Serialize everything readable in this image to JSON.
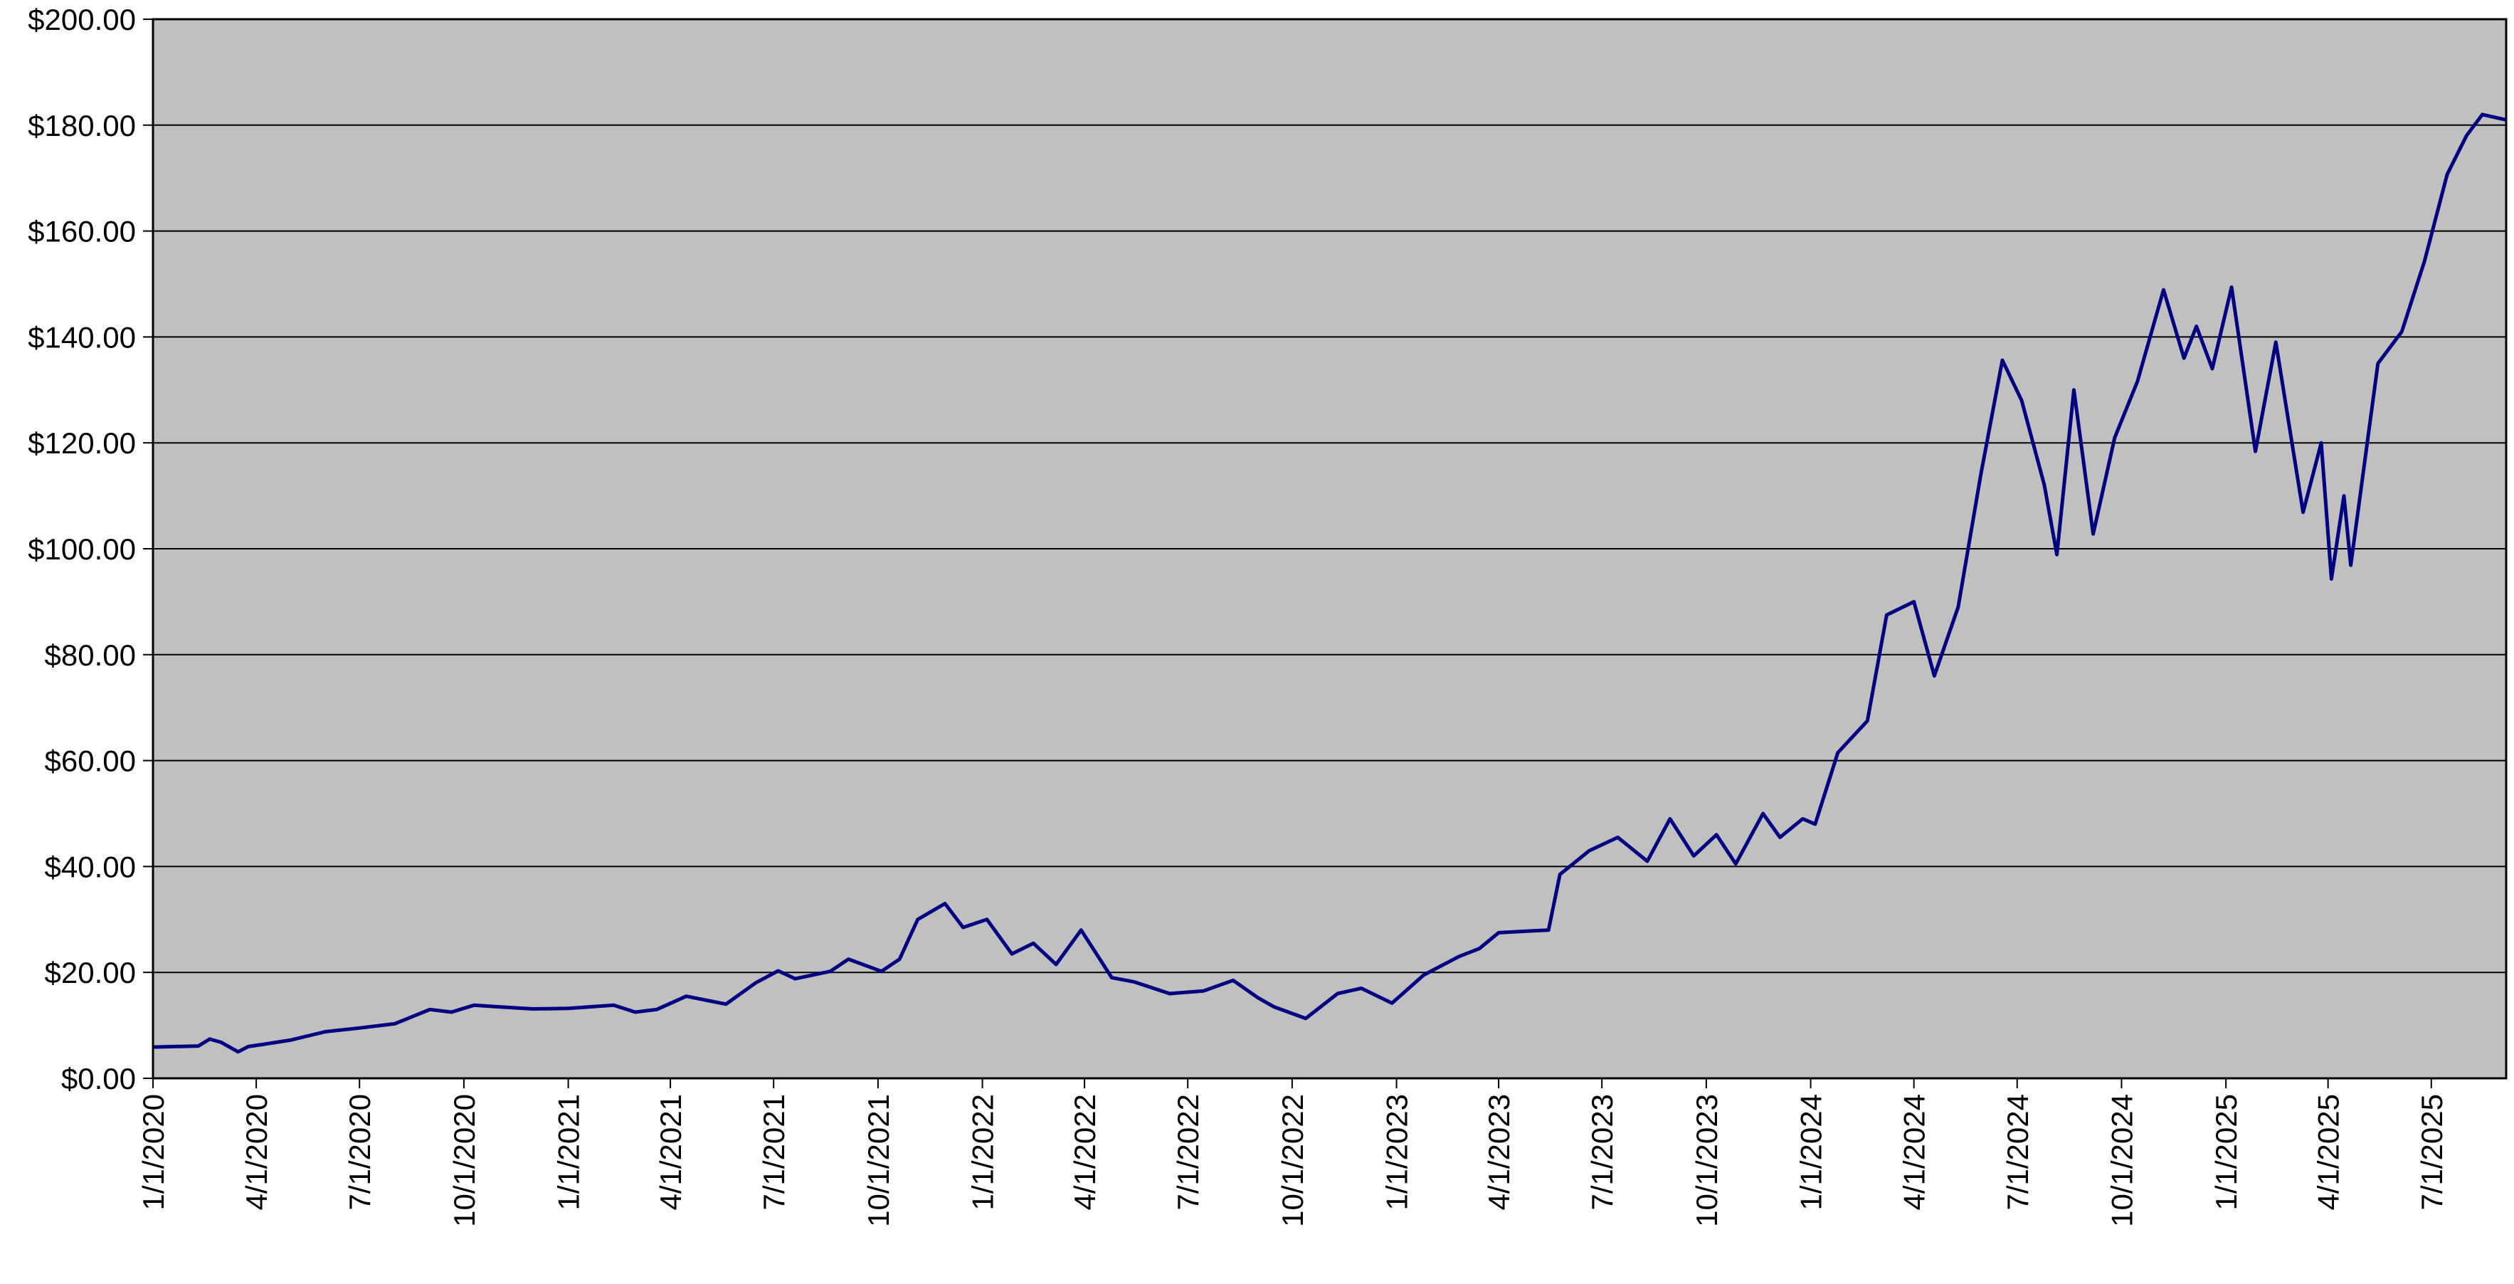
{
  "chart_data": {
    "type": "line",
    "title": "",
    "xlabel": "",
    "ylabel": "",
    "x_range": [
      "2020-01-01",
      "2025-09-05"
    ],
    "ylim": [
      0,
      200
    ],
    "y_ticks": [
      0,
      20,
      40,
      60,
      80,
      100,
      120,
      140,
      160,
      180,
      200
    ],
    "y_tick_labels": [
      "$0.00",
      "$20.00",
      "$40.00",
      "$60.00",
      "$80.00",
      "$100.00",
      "$120.00",
      "$140.00",
      "$160.00",
      "$180.00",
      "$200.00"
    ],
    "x_tick_dates": [
      "2020-01-01",
      "2020-04-01",
      "2020-07-01",
      "2020-10-01",
      "2021-01-01",
      "2021-04-01",
      "2021-07-01",
      "2021-10-01",
      "2022-01-01",
      "2022-04-01",
      "2022-07-01",
      "2022-10-01",
      "2023-01-01",
      "2023-04-01",
      "2023-07-01",
      "2023-10-01",
      "2024-01-01",
      "2024-04-01",
      "2024-07-01",
      "2024-10-01",
      "2025-01-01",
      "2025-04-01",
      "2025-07-01"
    ],
    "x_tick_labels": [
      "1/1/2020",
      "4/1/2020",
      "7/1/2020",
      "10/1/2020",
      "1/1/2021",
      "4/1/2021",
      "7/1/2021",
      "10/1/2021",
      "1/1/2022",
      "4/1/2022",
      "7/1/2022",
      "10/1/2022",
      "1/1/2023",
      "4/1/2023",
      "7/1/2023",
      "10/1/2023",
      "1/1/2024",
      "4/1/2024",
      "7/1/2024",
      "10/1/2024",
      "1/1/2025",
      "4/1/2025",
      "7/1/2025"
    ],
    "grid": "horizontal",
    "legend": "none",
    "colors": {
      "line": "#000080",
      "plot_background": "#c0c0c0",
      "gridline": "#000000"
    },
    "series": [
      {
        "points": [
          [
            "2020-01-01",
            5.9
          ],
          [
            "2020-01-20",
            6.0
          ],
          [
            "2020-02-10",
            6.1
          ],
          [
            "2020-02-20",
            7.4
          ],
          [
            "2020-03-01",
            6.8
          ],
          [
            "2020-03-16",
            5.0
          ],
          [
            "2020-03-25",
            6.0
          ],
          [
            "2020-04-10",
            6.5
          ],
          [
            "2020-05-01",
            7.2
          ],
          [
            "2020-06-01",
            8.8
          ],
          [
            "2020-07-01",
            9.5
          ],
          [
            "2020-08-01",
            10.3
          ],
          [
            "2020-09-01",
            13.0
          ],
          [
            "2020-09-20",
            12.5
          ],
          [
            "2020-10-10",
            13.8
          ],
          [
            "2020-11-01",
            13.5
          ],
          [
            "2020-12-01",
            13.1
          ],
          [
            "2021-01-01",
            13.2
          ],
          [
            "2021-02-10",
            13.8
          ],
          [
            "2021-03-01",
            12.5
          ],
          [
            "2021-03-20",
            13.0
          ],
          [
            "2021-04-15",
            15.5
          ],
          [
            "2021-05-20",
            14.0
          ],
          [
            "2021-06-15",
            18.0
          ],
          [
            "2021-07-05",
            20.3
          ],
          [
            "2021-07-20",
            18.8
          ],
          [
            "2021-08-20",
            20.2
          ],
          [
            "2021-09-05",
            22.5
          ],
          [
            "2021-10-04",
            20.2
          ],
          [
            "2021-10-20",
            22.5
          ],
          [
            "2021-11-05",
            30.0
          ],
          [
            "2021-11-29",
            33.0
          ],
          [
            "2021-12-15",
            28.5
          ],
          [
            "2022-01-05",
            30.0
          ],
          [
            "2022-01-27",
            23.5
          ],
          [
            "2022-02-15",
            25.5
          ],
          [
            "2022-03-07",
            21.5
          ],
          [
            "2022-03-29",
            28.0
          ],
          [
            "2022-04-25",
            19.0
          ],
          [
            "2022-05-15",
            18.2
          ],
          [
            "2022-06-15",
            16.0
          ],
          [
            "2022-07-15",
            16.5
          ],
          [
            "2022-08-10",
            18.5
          ],
          [
            "2022-09-01",
            15.2
          ],
          [
            "2022-09-15",
            13.5
          ],
          [
            "2022-10-13",
            11.3
          ],
          [
            "2022-11-10",
            16.0
          ],
          [
            "2022-12-01",
            17.0
          ],
          [
            "2022-12-28",
            14.2
          ],
          [
            "2023-01-25",
            19.5
          ],
          [
            "2023-02-25",
            23.0
          ],
          [
            "2023-03-15",
            24.5
          ],
          [
            "2023-04-01",
            27.5
          ],
          [
            "2023-05-15",
            28.0
          ],
          [
            "2023-05-25",
            38.5
          ],
          [
            "2023-06-20",
            43.0
          ],
          [
            "2023-07-15",
            45.5
          ],
          [
            "2023-08-10",
            41.0
          ],
          [
            "2023-08-30",
            49.0
          ],
          [
            "2023-09-20",
            42.0
          ],
          [
            "2023-10-10",
            46.0
          ],
          [
            "2023-10-27",
            40.5
          ],
          [
            "2023-11-20",
            50.0
          ],
          [
            "2023-12-05",
            45.5
          ],
          [
            "2023-12-25",
            49.0
          ],
          [
            "2024-01-05",
            48.0
          ],
          [
            "2024-01-25",
            61.5
          ],
          [
            "2024-02-20",
            67.5
          ],
          [
            "2024-03-08",
            87.5
          ],
          [
            "2024-04-01",
            90.0
          ],
          [
            "2024-04-19",
            76.0
          ],
          [
            "2024-05-10",
            89.0
          ],
          [
            "2024-05-30",
            114.0
          ],
          [
            "2024-06-18",
            135.6
          ],
          [
            "2024-07-05",
            128.0
          ],
          [
            "2024-07-25",
            112.0
          ],
          [
            "2024-08-05",
            98.9
          ],
          [
            "2024-08-20",
            130.0
          ],
          [
            "2024-09-06",
            102.8
          ],
          [
            "2024-09-25",
            121.0
          ],
          [
            "2024-10-15",
            131.6
          ],
          [
            "2024-11-07",
            148.9
          ],
          [
            "2024-11-25",
            136.0
          ],
          [
            "2024-12-06",
            142.0
          ],
          [
            "2024-12-20",
            134.0
          ],
          [
            "2025-01-06",
            149.4
          ],
          [
            "2025-01-27",
            118.4
          ],
          [
            "2025-02-14",
            139.0
          ],
          [
            "2025-03-10",
            106.9
          ],
          [
            "2025-03-26",
            120.0
          ],
          [
            "2025-04-04",
            94.3
          ],
          [
            "2025-04-15",
            110.0
          ],
          [
            "2025-04-21",
            96.9
          ],
          [
            "2025-05-15",
            135.0
          ],
          [
            "2025-06-05",
            141.0
          ],
          [
            "2025-06-25",
            154.3
          ],
          [
            "2025-07-15",
            170.7
          ],
          [
            "2025-08-01",
            178.0
          ],
          [
            "2025-08-15",
            182.0
          ],
          [
            "2025-09-05",
            181.0
          ]
        ]
      }
    ]
  }
}
